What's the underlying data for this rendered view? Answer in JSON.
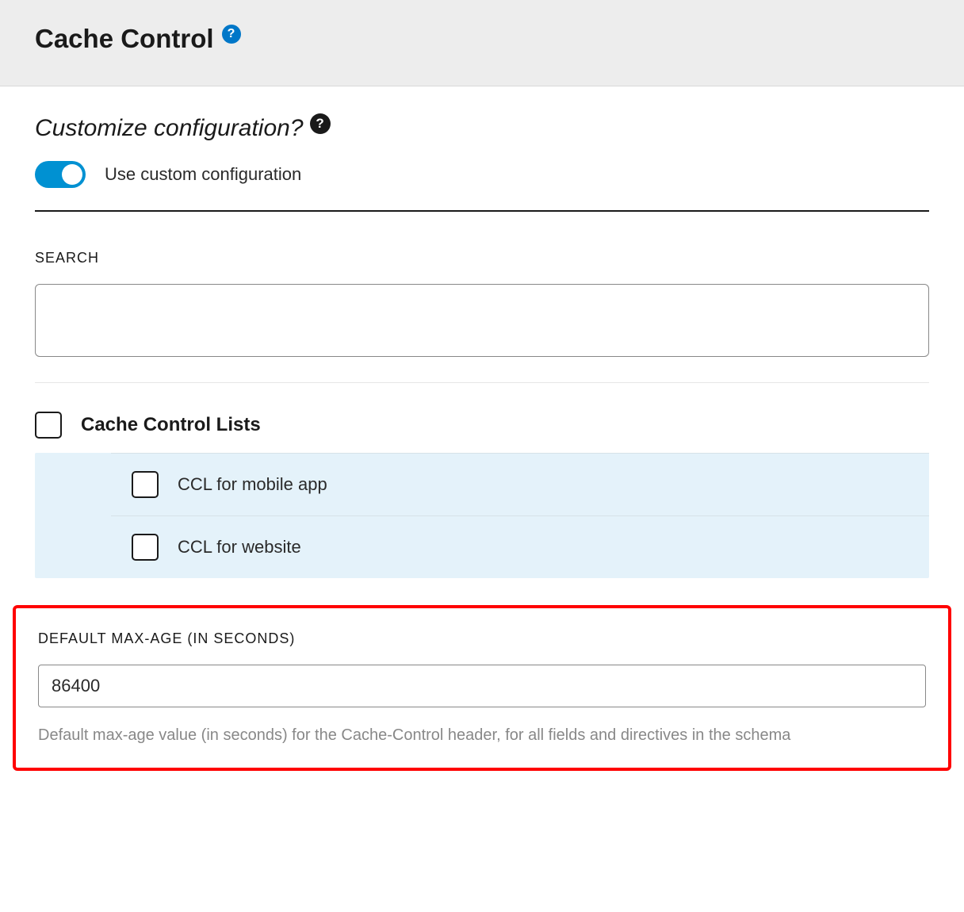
{
  "header": {
    "title": "Cache Control"
  },
  "customize": {
    "question": "Customize configuration?",
    "toggle_on": true,
    "toggle_label": "Use custom configuration"
  },
  "search": {
    "label": "SEARCH",
    "value": ""
  },
  "lists": {
    "parent_label": "Cache Control Lists",
    "items": [
      {
        "label": "CCL for mobile app",
        "checked": false
      },
      {
        "label": "CCL for website",
        "checked": false
      }
    ]
  },
  "maxage": {
    "label": "DEFAULT MAX-AGE (IN SECONDS)",
    "value": "86400",
    "help": "Default max-age value (in seconds) for the Cache-Control header, for all fields and directives in the schema"
  },
  "colors": {
    "header_bg": "#ededed",
    "accent_blue": "#0091d2",
    "help_blue": "#0077c8",
    "child_bg": "#e4f2fa",
    "highlight_border": "#ff0000",
    "help_text": "#888888"
  }
}
